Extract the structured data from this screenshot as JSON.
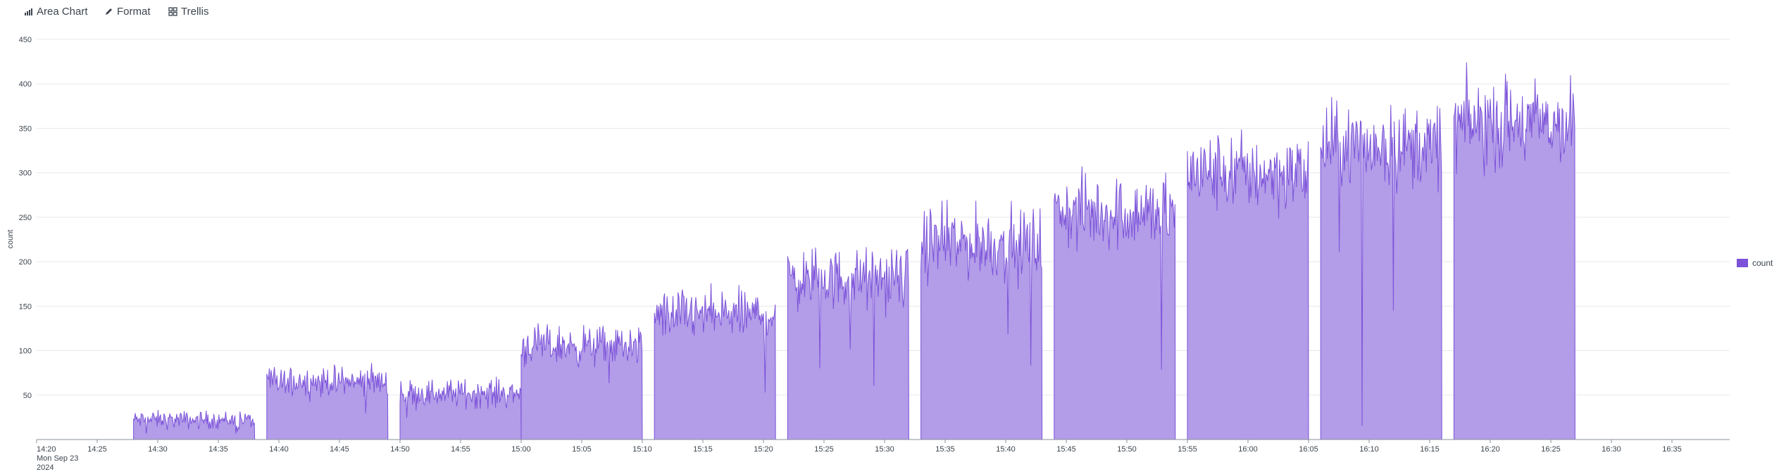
{
  "toolbar": {
    "area_chart_label": "Area Chart",
    "format_label": "Format",
    "trellis_label": "Trellis"
  },
  "chart_data": {
    "type": "area",
    "ylabel": "count",
    "xlabel": "",
    "ylim": [
      0,
      450
    ],
    "yticks": [
      50,
      100,
      150,
      200,
      250,
      300,
      350,
      400,
      450
    ],
    "xlim": [
      "14:20",
      "16:38"
    ],
    "xticks": [
      "14:20",
      "14:25",
      "14:30",
      "14:35",
      "14:40",
      "14:45",
      "14:50",
      "14:55",
      "15:00",
      "15:05",
      "15:10",
      "15:15",
      "15:20",
      "15:25",
      "15:30",
      "15:35",
      "15:40",
      "15:45",
      "15:50",
      "15:55",
      "16:00",
      "16:05",
      "16:10",
      "16:15",
      "16:20",
      "16:25",
      "16:30",
      "16:35"
    ],
    "x_first_label_date": [
      "Mon Sep 23",
      "2024"
    ],
    "grid": true,
    "legend_position": "right",
    "series": [
      {
        "name": "count",
        "color": "#7b52d9",
        "fill": "#b39ce8",
        "segments": [
          {
            "start": "14:28",
            "end": "14:38",
            "mean": 22,
            "noise": 5
          },
          {
            "start": "14:39",
            "end": "14:49",
            "mean": 65,
            "noise": 8
          },
          {
            "start": "14:50",
            "end": "15:00",
            "mean": 52,
            "noise": 8
          },
          {
            "start": "15:00",
            "end": "15:10",
            "mean": 105,
            "noise": 11
          },
          {
            "start": "15:11",
            "end": "15:21",
            "mean": 140,
            "noise": 14
          },
          {
            "start": "15:22",
            "end": "15:32",
            "mean": 180,
            "noise": 17
          },
          {
            "start": "15:33",
            "end": "15:43",
            "mean": 220,
            "noise": 20
          },
          {
            "start": "15:44",
            "end": "15:54",
            "mean": 255,
            "noise": 21
          },
          {
            "start": "15:55",
            "end": "16:05",
            "mean": 300,
            "noise": 22
          },
          {
            "start": "16:06",
            "end": "16:16",
            "mean": 330,
            "noise": 23
          },
          {
            "start": "16:17",
            "end": "16:27",
            "mean": 355,
            "noise": 25
          }
        ]
      }
    ]
  }
}
